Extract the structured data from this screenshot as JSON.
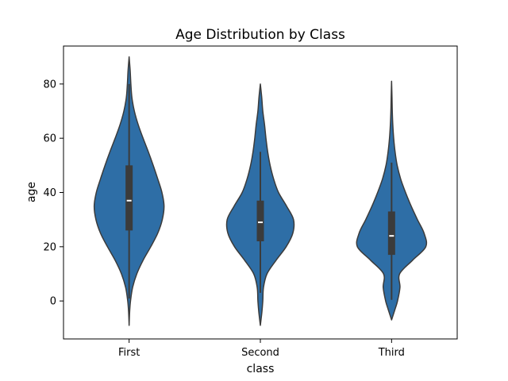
{
  "chart_data": {
    "type": "violin",
    "title": "Age Distribution by Class",
    "xlabel": "class",
    "ylabel": "age",
    "categories": [
      "First",
      "Second",
      "Third"
    ],
    "ylim": [
      -14,
      94
    ],
    "yticks": [
      0,
      20,
      40,
      60,
      80
    ],
    "grid": false,
    "legend": false,
    "colors": {
      "violin": "#2e6ea6",
      "outline": "#3b3b3b",
      "iqr_box": "#3b3b3b",
      "median": "#ffffff",
      "frame": "#000000"
    },
    "violins": [
      {
        "category": "First",
        "y_extent": [
          -9,
          90
        ],
        "whiskers": [
          0.9,
          80
        ],
        "quartiles": [
          26,
          37,
          50
        ],
        "profile": [
          [
            -9,
            0.0
          ],
          [
            -4,
            0.015
          ],
          [
            0,
            0.04
          ],
          [
            5,
            0.1
          ],
          [
            10,
            0.22
          ],
          [
            15,
            0.4
          ],
          [
            20,
            0.62
          ],
          [
            25,
            0.82
          ],
          [
            30,
            0.95
          ],
          [
            35,
            1.0
          ],
          [
            40,
            0.94
          ],
          [
            45,
            0.82
          ],
          [
            50,
            0.69
          ],
          [
            55,
            0.55
          ],
          [
            60,
            0.4
          ],
          [
            65,
            0.26
          ],
          [
            70,
            0.15
          ],
          [
            75,
            0.08
          ],
          [
            80,
            0.05
          ],
          [
            85,
            0.03
          ],
          [
            90,
            0.0
          ]
        ]
      },
      {
        "category": "Second",
        "y_extent": [
          -9,
          80
        ],
        "whiskers": [
          3,
          55
        ],
        "quartiles": [
          22,
          29,
          37
        ],
        "profile": [
          [
            -9,
            0.0
          ],
          [
            -4,
            0.045
          ],
          [
            0,
            0.07
          ],
          [
            5,
            0.09
          ],
          [
            10,
            0.19
          ],
          [
            15,
            0.45
          ],
          [
            20,
            0.74
          ],
          [
            25,
            0.93
          ],
          [
            30,
            0.95
          ],
          [
            35,
            0.75
          ],
          [
            40,
            0.52
          ],
          [
            45,
            0.38
          ],
          [
            50,
            0.28
          ],
          [
            55,
            0.21
          ],
          [
            60,
            0.16
          ],
          [
            65,
            0.12
          ],
          [
            70,
            0.07
          ],
          [
            75,
            0.04
          ],
          [
            80,
            0.0
          ]
        ]
      },
      {
        "category": "Third",
        "y_extent": [
          -7,
          81
        ],
        "whiskers": [
          0.4,
          51
        ],
        "quartiles": [
          17,
          24,
          33
        ],
        "profile": [
          [
            -7,
            0.0
          ],
          [
            -3,
            0.1
          ],
          [
            0,
            0.17
          ],
          [
            5,
            0.24
          ],
          [
            10,
            0.23
          ],
          [
            15,
            0.6
          ],
          [
            20,
            0.98
          ],
          [
            25,
            0.93
          ],
          [
            30,
            0.74
          ],
          [
            35,
            0.56
          ],
          [
            40,
            0.4
          ],
          [
            45,
            0.26
          ],
          [
            50,
            0.16
          ],
          [
            55,
            0.1
          ],
          [
            60,
            0.06
          ],
          [
            65,
            0.035
          ],
          [
            70,
            0.02
          ],
          [
            75,
            0.012
          ],
          [
            81,
            0.0
          ]
        ]
      }
    ]
  }
}
